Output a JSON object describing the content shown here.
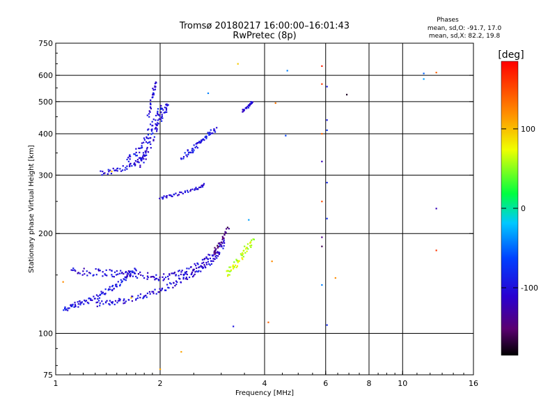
{
  "title_line1": "Tromsø 20180217 16:00:00–16:01:43",
  "title_line2": "RwPretec (8p)",
  "phases_block": {
    "heading": "Phases",
    "line_o": "mean, sd,O: -91.7, 17.0",
    "line_x": "mean, sd,X:  82.2, 19.8"
  },
  "colorbar": {
    "unit_label": "[deg]",
    "ticks": [
      {
        "value": 100,
        "label": "100"
      },
      {
        "value": 0,
        "label": "0"
      },
      {
        "value": -100,
        "label": "-100"
      }
    ],
    "range": [
      -185,
      185
    ]
  },
  "chart_data": {
    "type": "scatter",
    "xlabel": "Frequency [MHz]",
    "ylabel": "Stationary phase Virtual Height [km]",
    "x_scale": "log",
    "y_scale": "log",
    "xlim": [
      1,
      16
    ],
    "ylim": [
      75,
      750
    ],
    "x_ticks": [
      1,
      2,
      4,
      6,
      8,
      10,
      16
    ],
    "x_tick_labels": [
      "1",
      "2",
      "4",
      "6",
      "8",
      "10",
      "16"
    ],
    "y_ticks": [
      75,
      100,
      200,
      300,
      400,
      500,
      600,
      750
    ],
    "y_tick_labels": [
      "75",
      "100",
      "200",
      "300",
      "400",
      "500",
      "600",
      "750"
    ],
    "grid_x": [
      2,
      4,
      6,
      8,
      10
    ],
    "grid_y": [
      100,
      200,
      300,
      400,
      500,
      600
    ],
    "color_encoding": "phase_deg",
    "traces": [
      {
        "x": [
          1.05,
          1.12,
          1.2,
          1.3,
          1.4,
          1.5,
          1.6,
          1.7
        ],
        "y": [
          118,
          121,
          124,
          128,
          134,
          140,
          148,
          157
        ],
        "phase": -95,
        "spread": 0.035
      },
      {
        "x": [
          1.3,
          1.45,
          1.6,
          1.8,
          2.0,
          2.2,
          2.4,
          2.6,
          2.8,
          3.0
        ],
        "y": [
          123,
          124,
          126,
          130,
          135,
          141,
          148,
          156,
          165,
          175
        ],
        "phase": -100,
        "spread": 0.04
      },
      {
        "x": [
          1.1,
          1.25,
          1.4,
          1.55,
          1.7,
          1.9,
          2.1,
          2.3,
          2.5,
          2.7,
          2.9,
          3.1
        ],
        "y": [
          155,
          153,
          152,
          152,
          150,
          148,
          148,
          152,
          158,
          166,
          176,
          190
        ],
        "phase": -105,
        "spread": 0.05
      },
      {
        "x": [
          1.35,
          1.5,
          1.65,
          1.75,
          1.85
        ],
        "y": [
          305,
          310,
          320,
          335,
          350
        ],
        "phase": -100,
        "spread": 0.04
      },
      {
        "x": [
          1.6,
          1.75,
          1.85,
          1.95,
          2.0
        ],
        "y": [
          330,
          360,
          400,
          440,
          480
        ],
        "phase": -95,
        "spread": 0.06
      },
      {
        "x": [
          1.75,
          1.85,
          1.95,
          2.05,
          2.1
        ],
        "y": [
          320,
          370,
          420,
          460,
          500
        ],
        "phase": -100,
        "spread": 0.06
      },
      {
        "x": [
          1.85,
          1.9,
          1.95
        ],
        "y": [
          450,
          520,
          580
        ],
        "phase": -105,
        "spread": 0.03
      },
      {
        "x": [
          2.3,
          2.45,
          2.6,
          2.75,
          2.9
        ],
        "y": [
          340,
          355,
          375,
          395,
          420
        ],
        "phase": -90,
        "spread": 0.04
      },
      {
        "x": [
          2.0,
          2.2,
          2.5,
          2.7
        ],
        "y": [
          255,
          262,
          272,
          282
        ],
        "phase": -100,
        "spread": 0.02
      },
      {
        "x": [
          3.1,
          3.25,
          3.4,
          3.55,
          3.7
        ],
        "y": [
          150,
          158,
          168,
          180,
          195
        ],
        "phase": 65,
        "spread": 0.05
      },
      {
        "x": [
          2.85,
          3.0,
          3.15
        ],
        "y": [
          175,
          190,
          210
        ],
        "phase": -150,
        "spread": 0.03
      },
      {
        "x": [
          3.45,
          3.6,
          3.7
        ],
        "y": [
          470,
          485,
          500
        ],
        "phase": -100,
        "spread": 0.02
      }
    ],
    "points": [
      {
        "x": 1.0,
        "y": 98,
        "phase": 170
      },
      {
        "x": 1.05,
        "y": 143,
        "phase": 120
      },
      {
        "x": 1.45,
        "y": 308,
        "phase": 100
      },
      {
        "x": 1.65,
        "y": 128,
        "phase": 100
      },
      {
        "x": 2.0,
        "y": 78,
        "phase": 110
      },
      {
        "x": 2.3,
        "y": 88,
        "phase": 110
      },
      {
        "x": 2.75,
        "y": 530,
        "phase": -40
      },
      {
        "x": 3.25,
        "y": 105,
        "phase": -95
      },
      {
        "x": 3.35,
        "y": 650,
        "phase": 95
      },
      {
        "x": 3.6,
        "y": 220,
        "phase": -30
      },
      {
        "x": 4.2,
        "y": 165,
        "phase": 120
      },
      {
        "x": 4.3,
        "y": 495,
        "phase": 130
      },
      {
        "x": 4.1,
        "y": 108,
        "phase": 140
      },
      {
        "x": 4.6,
        "y": 395,
        "phase": -60
      },
      {
        "x": 4.65,
        "y": 620,
        "phase": -40
      },
      {
        "x": 5.85,
        "y": 640,
        "phase": 170
      },
      {
        "x": 5.85,
        "y": 565,
        "phase": 160
      },
      {
        "x": 5.85,
        "y": 400,
        "phase": 140
      },
      {
        "x": 5.85,
        "y": 330,
        "phase": -120
      },
      {
        "x": 5.85,
        "y": 250,
        "phase": 150
      },
      {
        "x": 5.85,
        "y": 195,
        "phase": -140
      },
      {
        "x": 5.85,
        "y": 183,
        "phase": -160
      },
      {
        "x": 5.85,
        "y": 140,
        "phase": -40
      },
      {
        "x": 6.05,
        "y": 555,
        "phase": -90
      },
      {
        "x": 6.05,
        "y": 440,
        "phase": -90
      },
      {
        "x": 6.05,
        "y": 410,
        "phase": -70
      },
      {
        "x": 6.05,
        "y": 285,
        "phase": -80
      },
      {
        "x": 6.05,
        "y": 222,
        "phase": -75
      },
      {
        "x": 6.05,
        "y": 106,
        "phase": -80
      },
      {
        "x": 6.4,
        "y": 147,
        "phase": 120
      },
      {
        "x": 6.9,
        "y": 525,
        "phase": -175
      },
      {
        "x": 11.5,
        "y": 608,
        "phase": -50
      },
      {
        "x": 11.5,
        "y": 585,
        "phase": -30
      },
      {
        "x": 12.5,
        "y": 612,
        "phase": 140
      },
      {
        "x": 12.5,
        "y": 238,
        "phase": -120
      },
      {
        "x": 12.5,
        "y": 178,
        "phase": 160
      }
    ]
  }
}
